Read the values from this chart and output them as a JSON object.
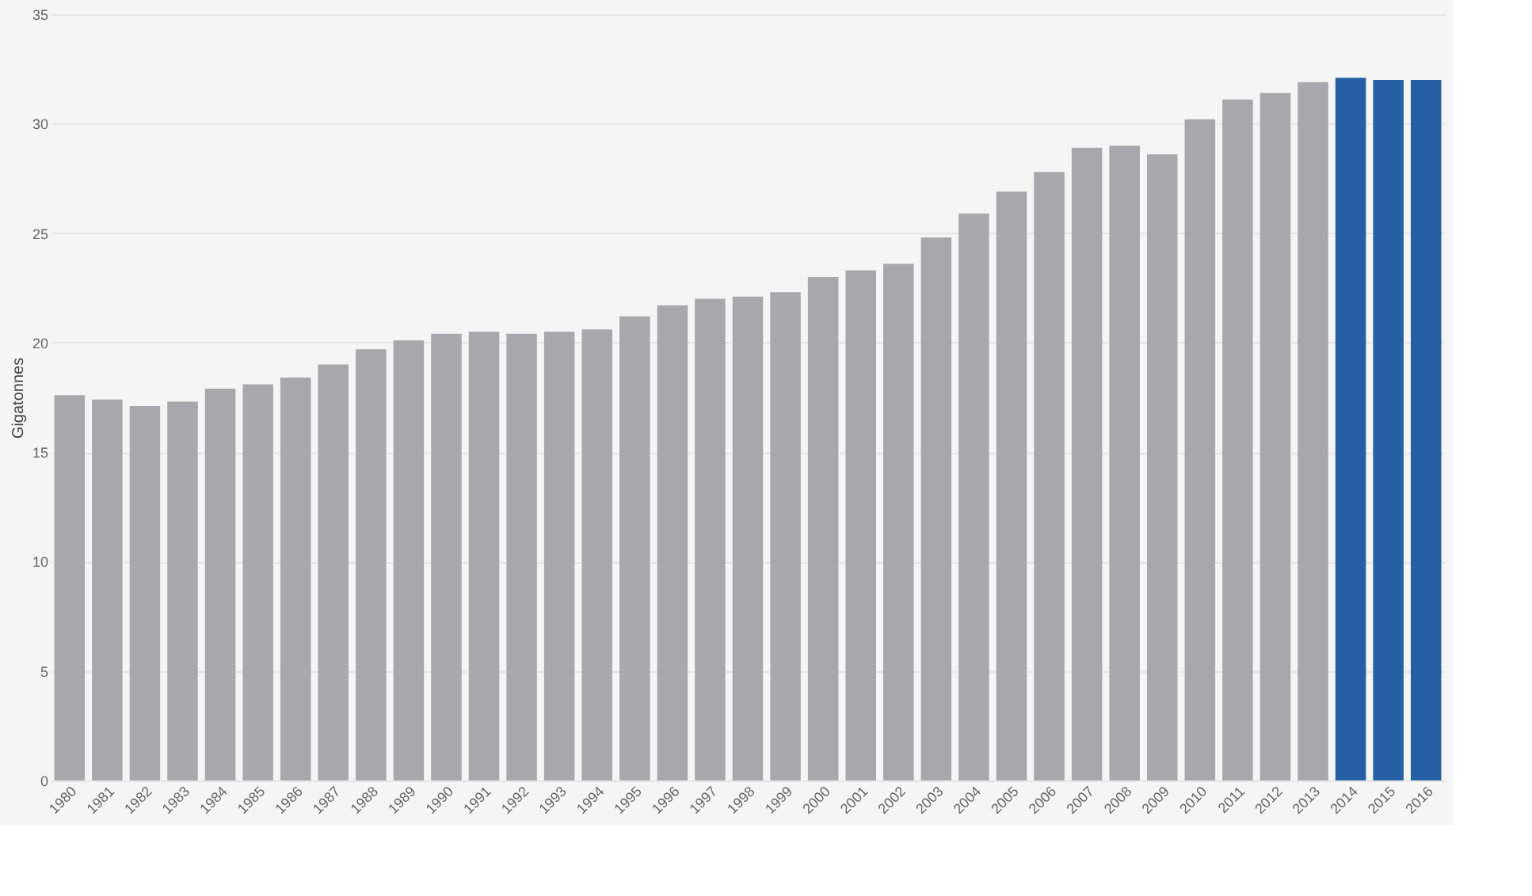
{
  "chart_data": {
    "type": "bar",
    "ylabel": "Gigatonnes",
    "categories": [
      "1980",
      "1981",
      "1982",
      "1983",
      "1984",
      "1985",
      "1986",
      "1987",
      "1988",
      "1989",
      "1990",
      "1991",
      "1992",
      "1993",
      "1994",
      "1995",
      "1996",
      "1997",
      "1998",
      "1999",
      "2000",
      "2001",
      "2002",
      "2003",
      "2004",
      "2005",
      "2006",
      "2007",
      "2008",
      "2009",
      "2010",
      "2011",
      "2012",
      "2013",
      "2014",
      "2015",
      "2016"
    ],
    "values": [
      17.6,
      17.4,
      17.1,
      17.3,
      17.9,
      18.1,
      18.4,
      19.0,
      19.7,
      20.1,
      20.4,
      20.5,
      20.4,
      20.5,
      20.6,
      21.2,
      21.7,
      22.0,
      22.1,
      22.3,
      23.0,
      23.3,
      23.6,
      24.8,
      25.9,
      26.9,
      27.8,
      28.9,
      29.0,
      28.6,
      30.2,
      31.1,
      31.4,
      31.9,
      32.1,
      32.0,
      32.0
    ],
    "colors": [
      "#a7a8ac",
      "#a7a8ac",
      "#a7a8ac",
      "#a7a8ac",
      "#a7a8ac",
      "#a7a8ac",
      "#a7a8ac",
      "#a7a8ac",
      "#a7a8ac",
      "#a7a8ac",
      "#a7a8ac",
      "#a7a8ac",
      "#a7a8ac",
      "#a7a8ac",
      "#a7a8ac",
      "#a7a8ac",
      "#a7a8ac",
      "#a7a8ac",
      "#a7a8ac",
      "#a7a8ac",
      "#a7a8ac",
      "#a7a8ac",
      "#a7a8ac",
      "#a7a8ac",
      "#a7a8ac",
      "#a7a8ac",
      "#a7a8ac",
      "#a7a8ac",
      "#a7a8ac",
      "#a7a8ac",
      "#a7a8ac",
      "#a7a8ac",
      "#a7a8ac",
      "#a7a8ac",
      "#2660a4",
      "#2660a4",
      "#2660a4"
    ],
    "ylim": [
      0,
      35
    ],
    "yticks": [
      0,
      5,
      10,
      15,
      20,
      25,
      30,
      35
    ],
    "grid": "y"
  }
}
